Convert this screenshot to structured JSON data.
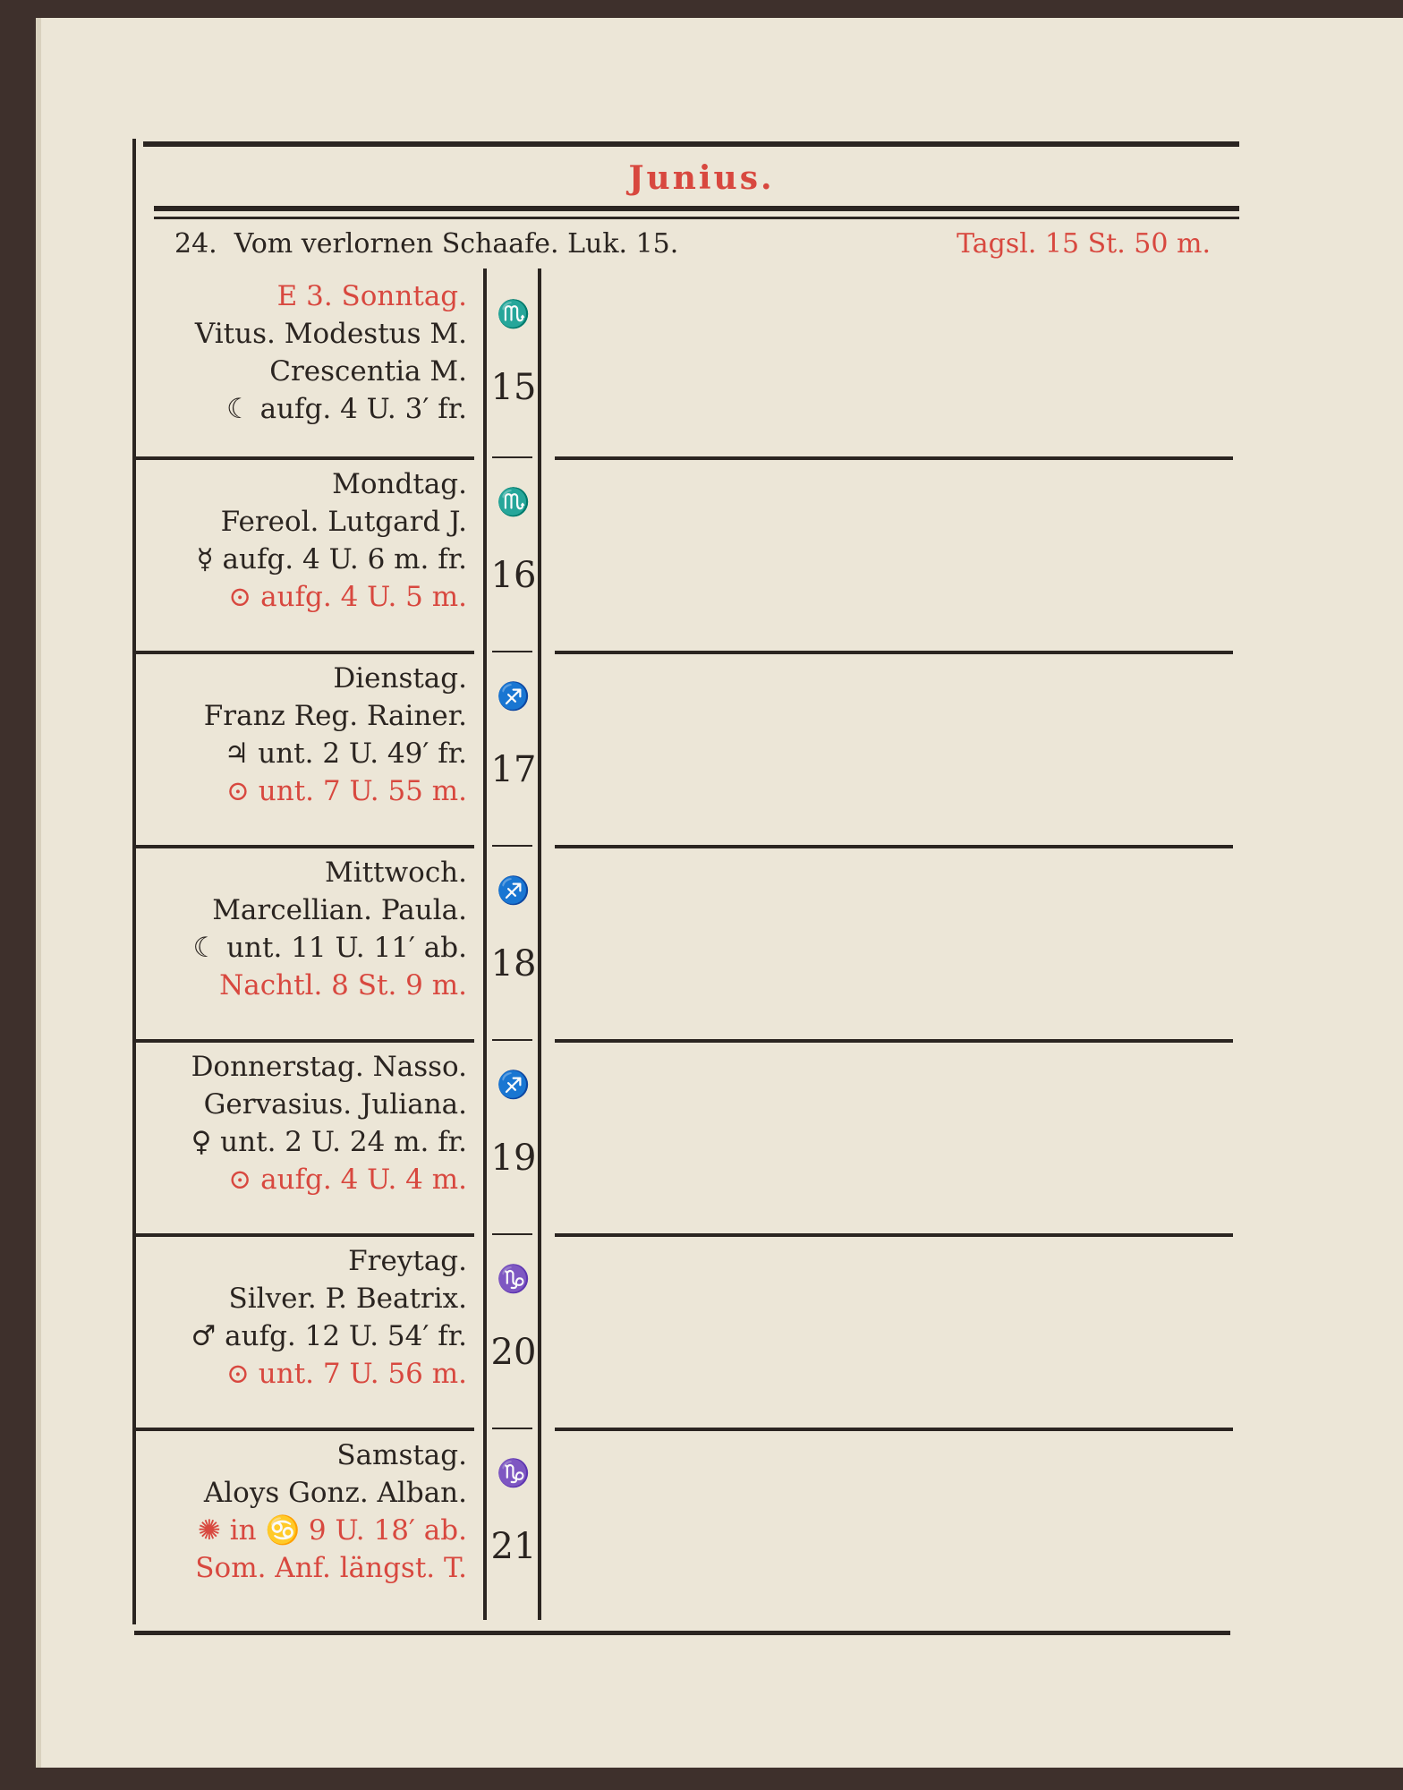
{
  "month_title": "Junius.",
  "header": {
    "week": "24.",
    "gospel": "Vom verlornen Schaafe. Luk. 15.",
    "day_length": "Tagsl. 15 St. 50 m."
  },
  "colors": {
    "red_ink": "#d8483f",
    "black_ink": "#2a2420",
    "paper": "#ece6d7"
  },
  "days": [
    {
      "lines": [
        {
          "text": "E 3. Sonntag.",
          "red": true
        },
        {
          "text": "Vitus. Modestus M."
        },
        {
          "text": "Crescentia M."
        },
        {
          "text": "☾ aufg. 4 U. 3′ fr."
        }
      ],
      "zodiac": "♏",
      "zodiac_icon": "scorpion-icon",
      "date": "15"
    },
    {
      "lines": [
        {
          "text": "Mondtag."
        },
        {
          "text": "Fereol. Lutgard J."
        },
        {
          "text": "☿ aufg. 4 U. 6 m. fr."
        },
        {
          "text": "⊙ aufg. 4 U. 5 m.",
          "red": true
        }
      ],
      "zodiac": "♏",
      "zodiac_icon": "scorpion-icon",
      "date": "16"
    },
    {
      "lines": [
        {
          "text": "Dienstag."
        },
        {
          "text": "Franz Reg. Rainer."
        },
        {
          "text": "♃ unt. 2 U. 49′ fr."
        },
        {
          "text": "⊙ unt. 7 U. 55 m.",
          "red": true
        }
      ],
      "zodiac": "♐",
      "zodiac_icon": "archer-icon",
      "date": "17"
    },
    {
      "lines": [
        {
          "text": "Mittwoch."
        },
        {
          "text": "Marcellian. Paula."
        },
        {
          "text": "☾ unt. 11 U. 11′ ab."
        },
        {
          "text": "Nachtl. 8 St. 9 m.",
          "red": true
        }
      ],
      "zodiac": "♐",
      "zodiac_icon": "archer-icon",
      "date": "18"
    },
    {
      "lines": [
        {
          "text": "Donnerstag. Nasso."
        },
        {
          "text": "Gervasius. Juliana."
        },
        {
          "text": "♀ unt. 2 U. 24 m. fr."
        },
        {
          "text": "⊙ aufg. 4 U. 4 m.",
          "red": true
        }
      ],
      "zodiac": "♐",
      "zodiac_icon": "archer-icon",
      "date": "19"
    },
    {
      "lines": [
        {
          "text": "Freytag."
        },
        {
          "text": "Silver. P. Beatrix."
        },
        {
          "text": "♂ aufg. 12 U. 54′ fr."
        },
        {
          "text": "⊙ unt. 7 U. 56 m.",
          "red": true
        }
      ],
      "zodiac": "♑",
      "zodiac_icon": "capricorn-icon",
      "date": "20"
    },
    {
      "lines": [
        {
          "text": "Samstag."
        },
        {
          "text": "Aloys Gonz. Alban."
        },
        {
          "text": "✺ in ♋ 9 U. 18′ ab.",
          "red": true
        },
        {
          "text": "Som. Anf. längst. T.",
          "red": true
        }
      ],
      "zodiac": "♑",
      "zodiac_icon": "capricorn-icon",
      "date": "21"
    }
  ]
}
